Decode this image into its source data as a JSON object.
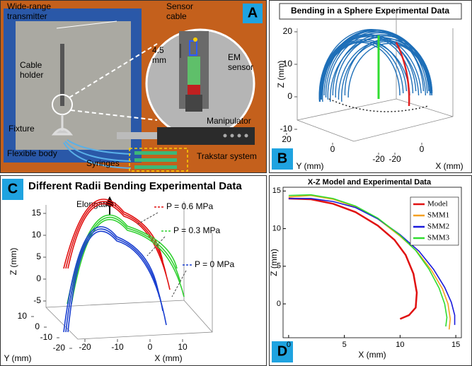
{
  "panel_a": {
    "letter": "A",
    "labels": [
      [
        "Wide-range",
        "transmitter"
      ],
      [
        "Sensor",
        "cable"
      ],
      [
        "Cable",
        "holder"
      ],
      [
        "4.5",
        "mm"
      ],
      [
        "EM",
        "sensor"
      ],
      [
        "Manipulator"
      ],
      [
        "Fixture"
      ],
      [
        "Flexible body"
      ],
      [
        "Syringes"
      ],
      [
        "Trakstar system"
      ]
    ]
  },
  "panel_b": {
    "letter": "B",
    "title": "Bending in a Sphere Experimental Data",
    "z_label": "Z (mm)",
    "y_label": "Y (mm)",
    "x_label": "X (mm)",
    "zticks": [
      20,
      10,
      0,
      -10
    ],
    "yticks": [
      20,
      0,
      -20
    ],
    "xticks": [
      -20,
      0
    ]
  },
  "panel_c": {
    "letter": "C",
    "title": "Different Radii Bending Experimental Data",
    "annotation": "Elongation",
    "pressures": [
      {
        "label": "P = 0.6 MPa",
        "color": "#e01010"
      },
      {
        "label": "P = 0.3 MPa",
        "color": "#30d030"
      },
      {
        "label": "P = 0 MPa",
        "color": "#1a3fd0"
      }
    ],
    "z_label": "Z (mm)",
    "y_label": "Y (mm)",
    "x_label": "X (mm)",
    "zticks": [
      15,
      10,
      5,
      0,
      -5
    ],
    "yticks": [
      10,
      0,
      -10,
      -20
    ],
    "xticks": [
      -20,
      -10,
      0,
      10
    ]
  },
  "chart_data": {
    "type": "line",
    "letter": "D",
    "title": "X-Z Model and Experimental Data",
    "x_label": "X (mm)",
    "y_label": "Z (mm)",
    "xlim": [
      -0.5,
      15.5
    ],
    "ylim": [
      -4.5,
      15.5
    ],
    "xticks": [
      0,
      5,
      10,
      15
    ],
    "yticks": [
      15,
      10,
      5,
      0
    ],
    "legend": "upper right",
    "series": [
      {
        "name": "Model",
        "color": "#e01010",
        "x": [
          0,
          2,
          4,
          6,
          8,
          9.5,
          10.5,
          11.2,
          11.5,
          11.4,
          10.8,
          10
        ],
        "values": [
          14,
          13.9,
          13.3,
          12.2,
          10.4,
          8.5,
          6.5,
          4,
          1.5,
          -0.5,
          -1.5,
          -2
        ]
      },
      {
        "name": "SMM1",
        "color": "#f5a020",
        "x": [
          0,
          2,
          4,
          6,
          8,
          10,
          11.5,
          12.8,
          13.8,
          14.3,
          14.5,
          14.4
        ],
        "values": [
          14.2,
          14.4,
          13.9,
          12.9,
          11.3,
          9,
          7,
          4.5,
          2,
          0,
          -2,
          -3.4
        ]
      },
      {
        "name": "SMM2",
        "color": "#1a1adc",
        "x": [
          0,
          2,
          4,
          6,
          8,
          10,
          11.7,
          13,
          14,
          14.6,
          14.9,
          14.9
        ],
        "values": [
          14,
          14,
          13.6,
          12.8,
          11.3,
          9.2,
          7,
          4.6,
          2.2,
          0.2,
          -1.5,
          -2.8
        ]
      },
      {
        "name": "SMM3",
        "color": "#30dd30",
        "x": [
          0,
          2,
          4,
          6,
          8,
          10,
          11.4,
          12.6,
          13.5,
          14,
          14.2,
          14.1
        ],
        "values": [
          14.4,
          14.5,
          14,
          13,
          11.4,
          9.1,
          7.1,
          4.6,
          2.1,
          0,
          -1.8,
          -3
        ]
      }
    ]
  }
}
